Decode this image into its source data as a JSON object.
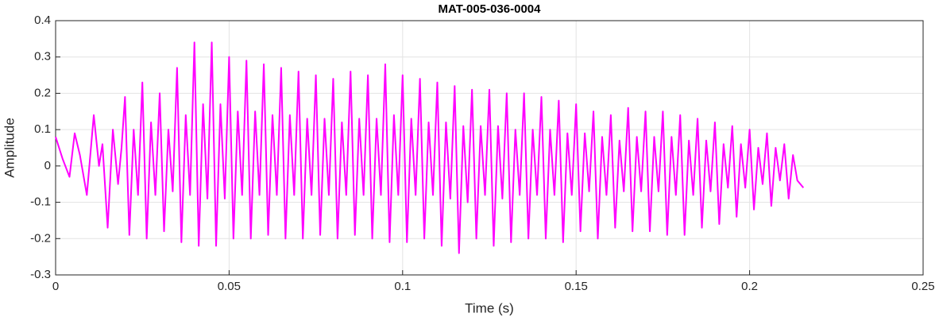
{
  "chart_data": {
    "type": "line",
    "title": "MAT-005-036-0004",
    "xlabel": "Time (s)",
    "ylabel": "Amplitude",
    "color": "#ff00ff",
    "grid": true,
    "xlim": [
      0,
      0.25
    ],
    "xticks": [
      0,
      0.05,
      0.1,
      0.15,
      0.2,
      0.25
    ],
    "ylim": [
      -0.3,
      0.4
    ],
    "yticks": [
      -0.3,
      -0.2,
      -0.1,
      0,
      0.1,
      0.2,
      0.3,
      0.4
    ],
    "x": [
      0,
      0.002,
      0.004,
      0.0055,
      0.007,
      0.009,
      0.011,
      0.0125,
      0.0135,
      0.015,
      0.0165,
      0.018,
      0.019,
      0.02,
      0.02125,
      0.0225,
      0.02375,
      0.025,
      0.02625,
      0.0275,
      0.02875,
      0.03,
      0.03125,
      0.0325,
      0.03375,
      0.035,
      0.03625,
      0.0375,
      0.03875,
      0.04,
      0.04125,
      0.0425,
      0.04375,
      0.045,
      0.04625,
      0.0475,
      0.04875,
      0.05,
      0.05125,
      0.0525,
      0.05375,
      0.055,
      0.05625,
      0.0575,
      0.05875,
      0.06,
      0.06125,
      0.0625,
      0.06375,
      0.065,
      0.06625,
      0.0675,
      0.06875,
      0.07,
      0.07125,
      0.0725,
      0.07375,
      0.075,
      0.07625,
      0.0775,
      0.07875,
      0.08,
      0.08125,
      0.0825,
      0.08375,
      0.085,
      0.08625,
      0.0875,
      0.08875,
      0.09,
      0.09125,
      0.0925,
      0.09375,
      0.095,
      0.09625,
      0.0975,
      0.09875,
      0.1,
      0.10125,
      0.1025,
      0.10375,
      0.105,
      0.10625,
      0.1075,
      0.10875,
      0.11,
      0.11125,
      0.1125,
      0.11375,
      0.115,
      0.11625,
      0.1175,
      0.11875,
      0.12,
      0.12125,
      0.1225,
      0.12375,
      0.125,
      0.12625,
      0.1275,
      0.12875,
      0.13,
      0.13125,
      0.1325,
      0.13375,
      0.135,
      0.13625,
      0.1375,
      0.13875,
      0.14,
      0.14125,
      0.1425,
      0.14375,
      0.145,
      0.14625,
      0.1475,
      0.14875,
      0.15,
      0.15125,
      0.1525,
      0.15375,
      0.155,
      0.15625,
      0.1575,
      0.15875,
      0.16,
      0.16125,
      0.1625,
      0.16375,
      0.165,
      0.16625,
      0.1675,
      0.16875,
      0.17,
      0.17125,
      0.1725,
      0.17375,
      0.175,
      0.17625,
      0.1775,
      0.17875,
      0.18,
      0.18125,
      0.1825,
      0.18375,
      0.185,
      0.18625,
      0.1875,
      0.18875,
      0.19,
      0.19125,
      0.1925,
      0.19375,
      0.195,
      0.19625,
      0.1975,
      0.19875,
      0.2,
      0.20125,
      0.2025,
      0.20375,
      0.205,
      0.20625,
      0.2075,
      0.20875,
      0.21,
      0.21125,
      0.2125,
      0.21375,
      0.2155
    ],
    "values": [
      0.08,
      0.02,
      -0.03,
      0.09,
      0.03,
      -0.08,
      0.14,
      0,
      0.06,
      -0.17,
      0.1,
      -0.05,
      0.05,
      0.19,
      -0.19,
      0.1,
      -0.08,
      0.23,
      -0.2,
      0.12,
      -0.08,
      0.2,
      -0.18,
      0.1,
      -0.07,
      0.27,
      -0.21,
      0.14,
      -0.08,
      0.34,
      -0.22,
      0.17,
      -0.09,
      0.34,
      -0.22,
      0.17,
      -0.09,
      0.3,
      -0.2,
      0.15,
      -0.08,
      0.29,
      -0.2,
      0.15,
      -0.08,
      0.28,
      -0.19,
      0.14,
      -0.08,
      0.27,
      -0.2,
      0.14,
      -0.08,
      0.26,
      -0.2,
      0.13,
      -0.08,
      0.25,
      -0.19,
      0.13,
      -0.08,
      0.24,
      -0.2,
      0.12,
      -0.08,
      0.26,
      -0.19,
      0.13,
      -0.08,
      0.25,
      -0.2,
      0.13,
      -0.08,
      0.28,
      -0.21,
      0.14,
      -0.08,
      0.25,
      -0.21,
      0.13,
      -0.08,
      0.24,
      -0.2,
      0.12,
      -0.08,
      0.23,
      -0.22,
      0.12,
      -0.09,
      0.22,
      -0.24,
      0.11,
      -0.1,
      0.21,
      -0.2,
      0.11,
      -0.08,
      0.21,
      -0.22,
      0.11,
      -0.09,
      0.2,
      -0.21,
      0.1,
      -0.08,
      0.2,
      -0.2,
      0.1,
      -0.08,
      0.19,
      -0.2,
      0.1,
      -0.08,
      0.18,
      -0.21,
      0.09,
      -0.08,
      0.17,
      -0.18,
      0.09,
      -0.07,
      0.15,
      -0.2,
      0.08,
      -0.08,
      0.14,
      -0.17,
      0.07,
      -0.07,
      0.16,
      -0.18,
      0.08,
      -0.07,
      0.15,
      -0.18,
      0.08,
      -0.07,
      0.15,
      -0.19,
      0.08,
      -0.08,
      0.14,
      -0.19,
      0.07,
      -0.08,
      0.13,
      -0.17,
      0.07,
      -0.07,
      0.12,
      -0.16,
      0.06,
      -0.06,
      0.11,
      -0.14,
      0.06,
      -0.06,
      0.1,
      -0.12,
      0.05,
      -0.05,
      0.09,
      -0.11,
      0.05,
      -0.04,
      0.06,
      -0.09,
      0.03,
      -0.04,
      -0.06
    ]
  }
}
